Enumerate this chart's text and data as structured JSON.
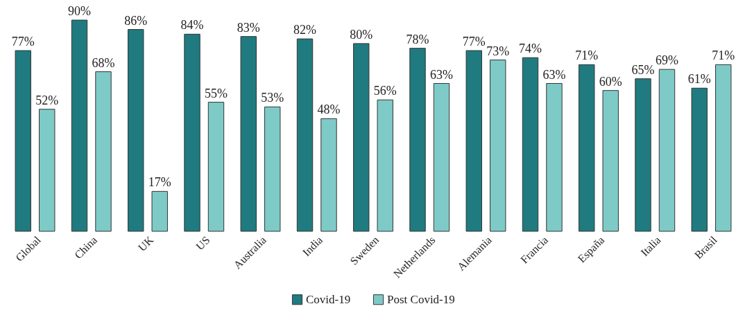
{
  "chart_data": {
    "type": "bar",
    "categories": [
      "Global",
      "China",
      "UK",
      "US",
      "Australia",
      "India",
      "Sweden",
      "Netherlands",
      "Alemania",
      "Francia",
      "España",
      "Italia",
      "Brasil"
    ],
    "series": [
      {
        "name": "Covid-19",
        "color": "#1f7b80",
        "values": [
          77,
          90,
          86,
          84,
          83,
          82,
          80,
          78,
          77,
          74,
          71,
          65,
          61
        ],
        "value_labels": [
          "77%",
          "90%",
          "86%",
          "84%",
          "83%",
          "82%",
          "80%",
          "78%",
          "77%",
          "74%",
          "71%",
          "65%",
          "61%"
        ]
      },
      {
        "name": "Post Covid-19",
        "color": "#7ecac7",
        "values": [
          52,
          68,
          17,
          55,
          53,
          48,
          56,
          63,
          73,
          63,
          60,
          69,
          71
        ],
        "value_labels": [
          "52%",
          "68%",
          "17%",
          "55%",
          "53%",
          "48%",
          "56%",
          "63%",
          "73%",
          "63%",
          "60%",
          "69%",
          "71%"
        ]
      }
    ],
    "legend": "bottom"
  }
}
